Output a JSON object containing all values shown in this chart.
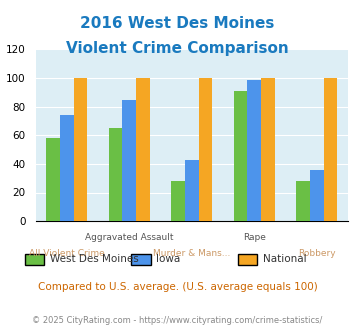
{
  "title_line1": "2016 West Des Moines",
  "title_line2": "Violent Crime Comparison",
  "title_color": "#1a7abf",
  "categories": [
    "All Violent Crime",
    "Aggravated Assault",
    "Murder & Mans...",
    "Rape",
    "Robbery"
  ],
  "series": {
    "West Des Moines": [
      58,
      65,
      28,
      91,
      28
    ],
    "Iowa": [
      74,
      85,
      43,
      99,
      36
    ],
    "National": [
      100,
      100,
      100,
      100,
      100
    ]
  },
  "colors": {
    "West Des Moines": "#6abf45",
    "Iowa": "#4d94eb",
    "National": "#f5a623"
  },
  "ylim": [
    0,
    120
  ],
  "yticks": [
    0,
    20,
    40,
    60,
    80,
    100,
    120
  ],
  "plot_bg": "#ddeef5",
  "subtitle": "Compared to U.S. average. (U.S. average equals 100)",
  "subtitle_color": "#cc6600",
  "footer": "© 2025 CityRating.com - https://www.cityrating.com/crime-statistics/",
  "footer_color": "#888888",
  "bar_width": 0.22
}
